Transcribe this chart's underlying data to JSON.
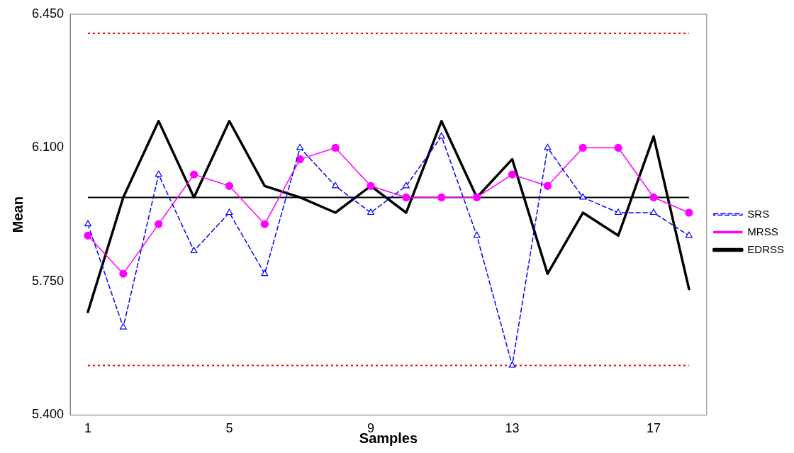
{
  "chart_data": {
    "type": "line",
    "xlabel": "Samples",
    "ylabel": "Mean",
    "categories": [
      "1",
      null,
      null,
      null,
      "5",
      null,
      null,
      null,
      "9",
      null,
      null,
      null,
      "13",
      null,
      null,
      null,
      "17",
      null
    ],
    "ylim": [
      5.4,
      6.45
    ],
    "yticks": [
      {
        "value": 5.4,
        "label": "5.400"
      },
      {
        "value": 5.75,
        "label": "5.750"
      },
      {
        "value": 6.1,
        "label": "6.100"
      },
      {
        "value": 6.45,
        "label": "6.450"
      }
    ],
    "grid": false,
    "legend": "right",
    "series": [
      {
        "name": "SRS",
        "color": "#0000ff",
        "marker": "triangle",
        "line_style": "dashed",
        "values": [
          5.9,
          5.63,
          6.03,
          5.83,
          5.93,
          5.77,
          6.1,
          6.0,
          5.93,
          6.0,
          6.13,
          5.87,
          5.53,
          6.1,
          5.97,
          5.93,
          5.93,
          5.87
        ]
      },
      {
        "name": "MRSS",
        "color": "#ff00ff",
        "marker": "circle",
        "line_style": "solid",
        "values": [
          5.87,
          5.77,
          5.9,
          6.03,
          6.0,
          5.9,
          6.07,
          6.1,
          6.0,
          5.97,
          5.97,
          5.97,
          6.03,
          6.0,
          6.1,
          6.1,
          5.97,
          5.93
        ]
      },
      {
        "name": "EDRSS",
        "color": "#000000",
        "marker": "none",
        "line_style": "solid",
        "values": [
          5.67,
          5.97,
          6.17,
          5.97,
          6.17,
          6.0,
          5.97,
          5.93,
          6.0,
          5.93,
          6.17,
          5.97,
          6.07,
          5.77,
          5.93,
          5.87,
          6.13,
          5.73
        ]
      }
    ],
    "ref_lines": [
      {
        "axis": "y",
        "value": 6.4,
        "color": "#ff0000",
        "line_style": "dotted"
      },
      {
        "axis": "y",
        "value": 5.97,
        "color": "#000000",
        "line_style": "solid"
      },
      {
        "axis": "y",
        "value": 5.53,
        "color": "#ff0000",
        "line_style": "dotted"
      }
    ]
  }
}
